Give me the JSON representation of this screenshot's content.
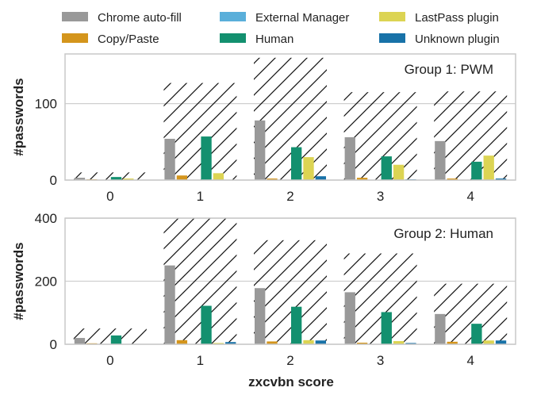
{
  "chart_data": {
    "type": "bar",
    "xlabel": "zxcvbn score",
    "categories": [
      "0",
      "1",
      "2",
      "3",
      "4"
    ],
    "legend": {
      "placement": "top",
      "entries": [
        {
          "name": "Chrome auto-fill",
          "color": "#999999"
        },
        {
          "name": "Copy/Paste",
          "color": "#d4951c"
        },
        {
          "name": "External Manager",
          "color": "#5aafda"
        },
        {
          "name": "Human",
          "color": "#13906f"
        },
        {
          "name": "LastPass plugin",
          "color": "#dcd453"
        },
        {
          "name": "Unknown plugin",
          "color": "#1872a8"
        }
      ]
    },
    "panels": [
      {
        "title": "Group 1: PWM",
        "ylabel": "#passwords",
        "ylim": [
          0,
          165
        ],
        "yticks": [
          0,
          100
        ],
        "grid": true,
        "hatched_totals": [
          10,
          127,
          160,
          115,
          116
        ],
        "series": [
          {
            "name": "Chrome auto-fill",
            "values": [
              3,
              54,
              78,
              56,
              51
            ]
          },
          {
            "name": "Copy/Paste",
            "values": [
              1,
              6,
              2,
              3,
              2
            ]
          },
          {
            "name": "External Manager",
            "values": [
              0,
              0,
              0,
              0,
              0
            ]
          },
          {
            "name": "Human",
            "values": [
              4,
              57,
              43,
              31,
              24
            ]
          },
          {
            "name": "LastPass plugin",
            "values": [
              2,
              9,
              30,
              20,
              32
            ]
          },
          {
            "name": "Unknown plugin",
            "values": [
              0,
              0,
              5,
              1,
              2
            ]
          }
        ]
      },
      {
        "title": "Group 2: Human",
        "ylabel": "#passwords",
        "ylim": [
          0,
          400
        ],
        "yticks": [
          0,
          200,
          400
        ],
        "grid": true,
        "hatched_totals": [
          50,
          400,
          330,
          288,
          192
        ],
        "series": [
          {
            "name": "Chrome auto-fill",
            "values": [
              20,
              250,
              178,
              165,
              96
            ]
          },
          {
            "name": "Copy/Paste",
            "values": [
              3,
              13,
              9,
              5,
              8
            ]
          },
          {
            "name": "External Manager",
            "values": [
              0,
              0,
              0,
              0,
              0
            ]
          },
          {
            "name": "Human",
            "values": [
              28,
              122,
              119,
              102,
              65
            ]
          },
          {
            "name": "LastPass plugin",
            "values": [
              1,
              4,
              13,
              10,
              12
            ]
          },
          {
            "name": "Unknown plugin",
            "values": [
              0,
              7,
              12,
              4,
              12
            ]
          }
        ]
      }
    ]
  }
}
